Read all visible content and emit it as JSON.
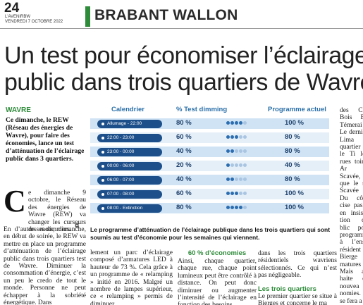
{
  "header": {
    "page_number": "24",
    "publication": "L'AVENIRBW",
    "date": "VENDREDI 7 OCTOBRE 2022",
    "section": "BRABANT WALLON"
  },
  "headline": {
    "line1": "Un test pour économiser l’éclairage",
    "line2": "public dans trois quartiers de Wavre"
  },
  "kicker": "WAVRE",
  "intro": "Ce dimanche, le REW (Réseau des énergies de Wavre), pour faire des économies, lance un test d’atténuation de l’éclairage public dans 3 quartiers.",
  "body": {
    "dropcap": "C",
    "col1_top": "e dimanche 9 octobre, le Réseau des énergies de Wavre (REW) va changer les curseurs de ses dimmers.",
    "col1": "En d’autres mots, dimanche, en début de soirée, le REW va mettre en place un programme d’atténuation de l’éclairage public dans trois quartiers test de Wavre. Diminuer la consommation d’énergie, c’est un peu le credo de tout le monde. Personne ne peut échapper à la sobriété énergétique. Dans",
    "col2": "lement un parc d’éclairage composé d’armatures LED à hauteur de 73 %. Cela grâce à un programme de « relamping » initié en 2016. Malgré un nombre de lampes supérieur, ce « relamping » permis de diminuer",
    "col3_head": "60 % d’économies",
    "col3": "Ainsi, chaque quartier, chaque rue, chaque point lumineux peut être contrôlé à distance. On peut donc diminuer ou augmenter l’intensité de l’éclairage en fonction des besoins",
    "col4": "dans les trois quartiers résidentiels wavriens sélectionnés. Ce qui n’est pas négligeable.",
    "col4_head": "Les trois quartiers",
    "col4b": "Le premier quartier se situe à Bierges et concerne le ma",
    "col5": "des Clo Bois Be Témerai Le derni à Lima quartier et le Ti les rues toine Ar Scavée, que le se Scavée d Du côté cise pas l en insiste tion de blic pou programm à l’ense résident et Bierge matures Mais av haite d’ nouvea nomies. se fera a"
  },
  "table": {
    "headers": {
      "calendar": "Calendrier",
      "dimming": "% Test dimming",
      "program": "Programme actuel"
    },
    "rows": [
      {
        "slot": "Allumage - 22:00",
        "test": "80 %",
        "level": 4,
        "program": "100 %"
      },
      {
        "slot": "22:00 - 23:00",
        "test": "60 %",
        "level": 3,
        "program": "80 %"
      },
      {
        "slot": "23:00 - 00:00",
        "test": "40 %",
        "level": 2,
        "program": "80 %"
      },
      {
        "slot": "00:00 - 06:00",
        "test": "20 %",
        "level": 1,
        "program": "40 %"
      },
      {
        "slot": "06:00 - 07:00",
        "test": "40 %",
        "level": 2,
        "program": "80 %"
      },
      {
        "slot": "07:00 - 08:00",
        "test": "60 %",
        "level": 3,
        "program": "100 %"
      },
      {
        "slot": "08:00 - Extinction",
        "test": "80 %",
        "level": 4,
        "program": "100 %"
      }
    ],
    "caption": "Le programme d’atténuation de l’éclairage publique dans les trois quartiers qui sont soumis au test d’économie pour les semaines qui viennent."
  },
  "colors": {
    "accent_green": "#2e8b3a",
    "table_blue": "#1d4f8a"
  }
}
